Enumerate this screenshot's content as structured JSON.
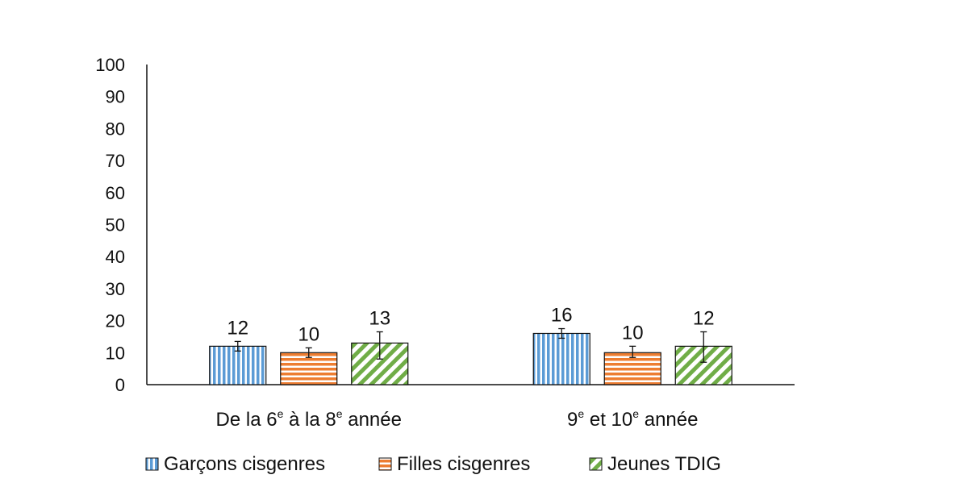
{
  "chart_data": {
    "type": "bar",
    "categories": [
      {
        "parts": [
          {
            "text": "De la 6"
          },
          {
            "text": "e",
            "sup": true
          },
          {
            "text": " à la 8"
          },
          {
            "text": "e",
            "sup": true
          },
          {
            "text": " année"
          }
        ]
      },
      {
        "parts": [
          {
            "text": "9"
          },
          {
            "text": "e",
            "sup": true
          },
          {
            "text": " et 10"
          },
          {
            "text": "e",
            "sup": true
          },
          {
            "text": " année"
          }
        ]
      }
    ],
    "series": [
      {
        "name": "Garçons cisgenres",
        "color": "#5b9bd5",
        "pattern": "vertical-stripes",
        "values": [
          12,
          16
        ],
        "labels": [
          "12",
          "16"
        ],
        "err_low": [
          10.5,
          14.5
        ],
        "err_high": [
          13.5,
          17.5
        ]
      },
      {
        "name": "Filles cisgenres",
        "color": "#ed7d31",
        "pattern": "horizontal-stripes",
        "values": [
          10,
          10
        ],
        "labels": [
          "10",
          "10"
        ],
        "err_low": [
          8.5,
          8.5
        ],
        "err_high": [
          11.5,
          12
        ]
      },
      {
        "name": "Jeunes TDIG",
        "color": "#70ad47",
        "pattern": "diagonal-stripes",
        "values": [
          13,
          12
        ],
        "labels": [
          "13",
          "12"
        ],
        "err_low": [
          8,
          7
        ],
        "err_high": [
          16.5,
          16.5
        ]
      }
    ],
    "ylim": [
      0,
      100
    ],
    "yticks": [
      0,
      10,
      20,
      30,
      40,
      50,
      60,
      70,
      80,
      90,
      100
    ],
    "grid": false,
    "legend_position": "bottom"
  }
}
